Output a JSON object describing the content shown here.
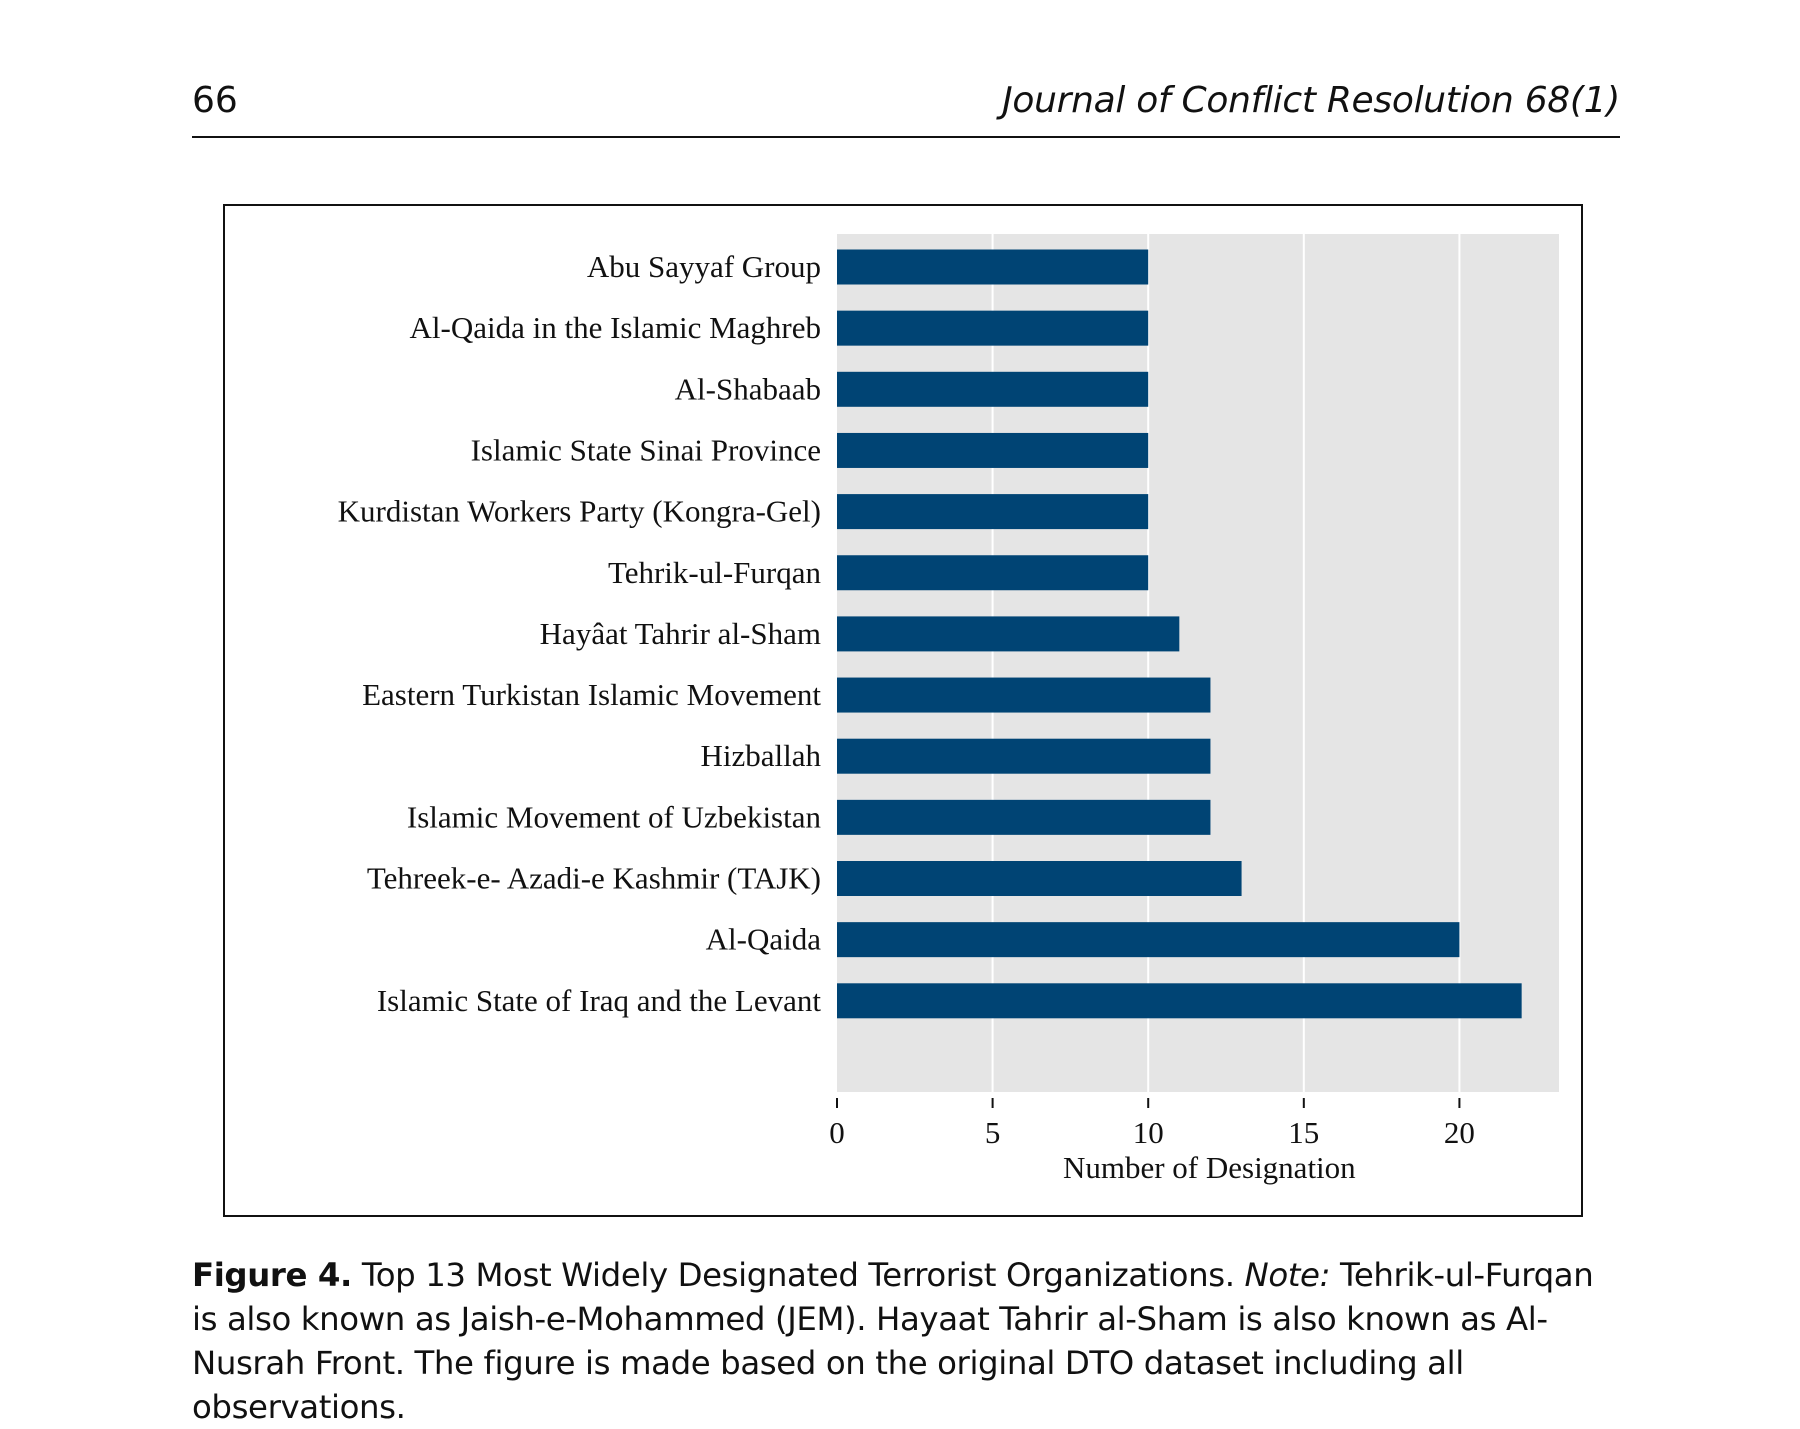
{
  "header": {
    "page_number": "66",
    "journal": "Journal of Conflict Resolution 68(1)"
  },
  "caption": {
    "label": "Figure 4.",
    "title": "Top 13 Most Widely Designated Terrorist Organizations.",
    "note_label": "Note:",
    "note_text": "Tehrik-ul-Furqan is also known as Jaish-e-Mohammed (JEM). Hayaat Tahrir al-Sham is also known as Al-Nusrah Front. The figure is made based on the original DTO dataset including all observations."
  },
  "colors": {
    "bar": "#004474",
    "panel": "#e5e5e5",
    "grid": "#ffffff"
  },
  "chart_data": {
    "type": "bar",
    "orientation": "horizontal",
    "title": "",
    "xlabel": "Number of Designation",
    "ylabel": "",
    "xlim": [
      0,
      23.2
    ],
    "xticks": [
      0,
      5,
      10,
      15,
      20
    ],
    "xtick_labels": [
      "0",
      "5",
      "10",
      "15",
      "20"
    ],
    "grid": true,
    "legend": "none",
    "categories": [
      "Abu Sayyaf Group",
      "Al-Qaida in the Islamic Maghreb",
      "Al-Shabaab",
      "Islamic State Sinai Province",
      "Kurdistan Workers Party  (Kongra-Gel)",
      "Tehrik-ul-Furqan",
      "Hayâat Tahrir al-Sham",
      "Eastern Turkistan Islamic Movement",
      "Hizballah",
      "Islamic Movement of Uzbekistan",
      "Tehreek-e- Azadi-e Kashmir (TAJK)",
      "Al-Qaida",
      "Islamic State of Iraq and the Levant"
    ],
    "values": [
      10,
      10,
      10,
      10,
      10,
      10,
      11,
      12,
      12,
      12,
      13,
      20,
      22
    ]
  }
}
